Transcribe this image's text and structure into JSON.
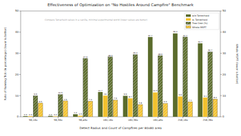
{
  "chart_data": {
    "type": "bar",
    "title": "Effectiveness of Optimization on \"No Hostiles Around Campfire\" Benchmark",
    "annotation": "Compare Tetracheid values in a vanilla, minimal experimental world (lower values are better)",
    "x_label": "Detect Radius and Count of Campfires per 80x80 area",
    "y_label": "Rate of Running Tick (in percentage) (lower is better)",
    "y2_label": "Whole MSPT (lower is better)",
    "categories": [
      "96,16x",
      "96,36x",
      "96,48x",
      "160,16x",
      "160,36x",
      "160,48x",
      "256,16x",
      "256,36x"
    ],
    "series": [
      {
        "name": "w/o Tetracheid",
        "color": "#5a6b2b",
        "values": [
          0.3,
          0.4,
          1.2,
          11.7,
          9.9,
          37.7,
          39.4,
          34.7
        ]
      },
      {
        "name": "w. Tetracheid",
        "color": "#f2c12e",
        "values": [
          0.3,
          0.2,
          0.5,
          10.0,
          8.7,
          11.5,
          9.6,
          9.1
        ]
      },
      {
        "name": "Tree Cost (%)",
        "color": "#5a6b2b",
        "axis": "y2",
        "values": [
          9.9,
          10.5,
          27.6,
          28.3,
          29.4,
          28.9,
          37.7,
          30.7
        ]
      },
      {
        "name": "Whole MSPT",
        "color": "#f2c12e",
        "axis": "y2",
        "values": [
          6.5,
          7.5,
          7.4,
          7.9,
          5.8,
          6.3,
          7.1,
          8.4
        ]
      }
    ],
    "ylim": [
      0,
      50
    ],
    "yticks": [
      0,
      10,
      20,
      30,
      40,
      50
    ],
    "y2lim": [
      0,
      50
    ],
    "y2ticks": [
      0,
      10,
      20,
      30,
      40,
      50
    ],
    "grid": false,
    "legend": "upper right",
    "data_labels": true
  }
}
